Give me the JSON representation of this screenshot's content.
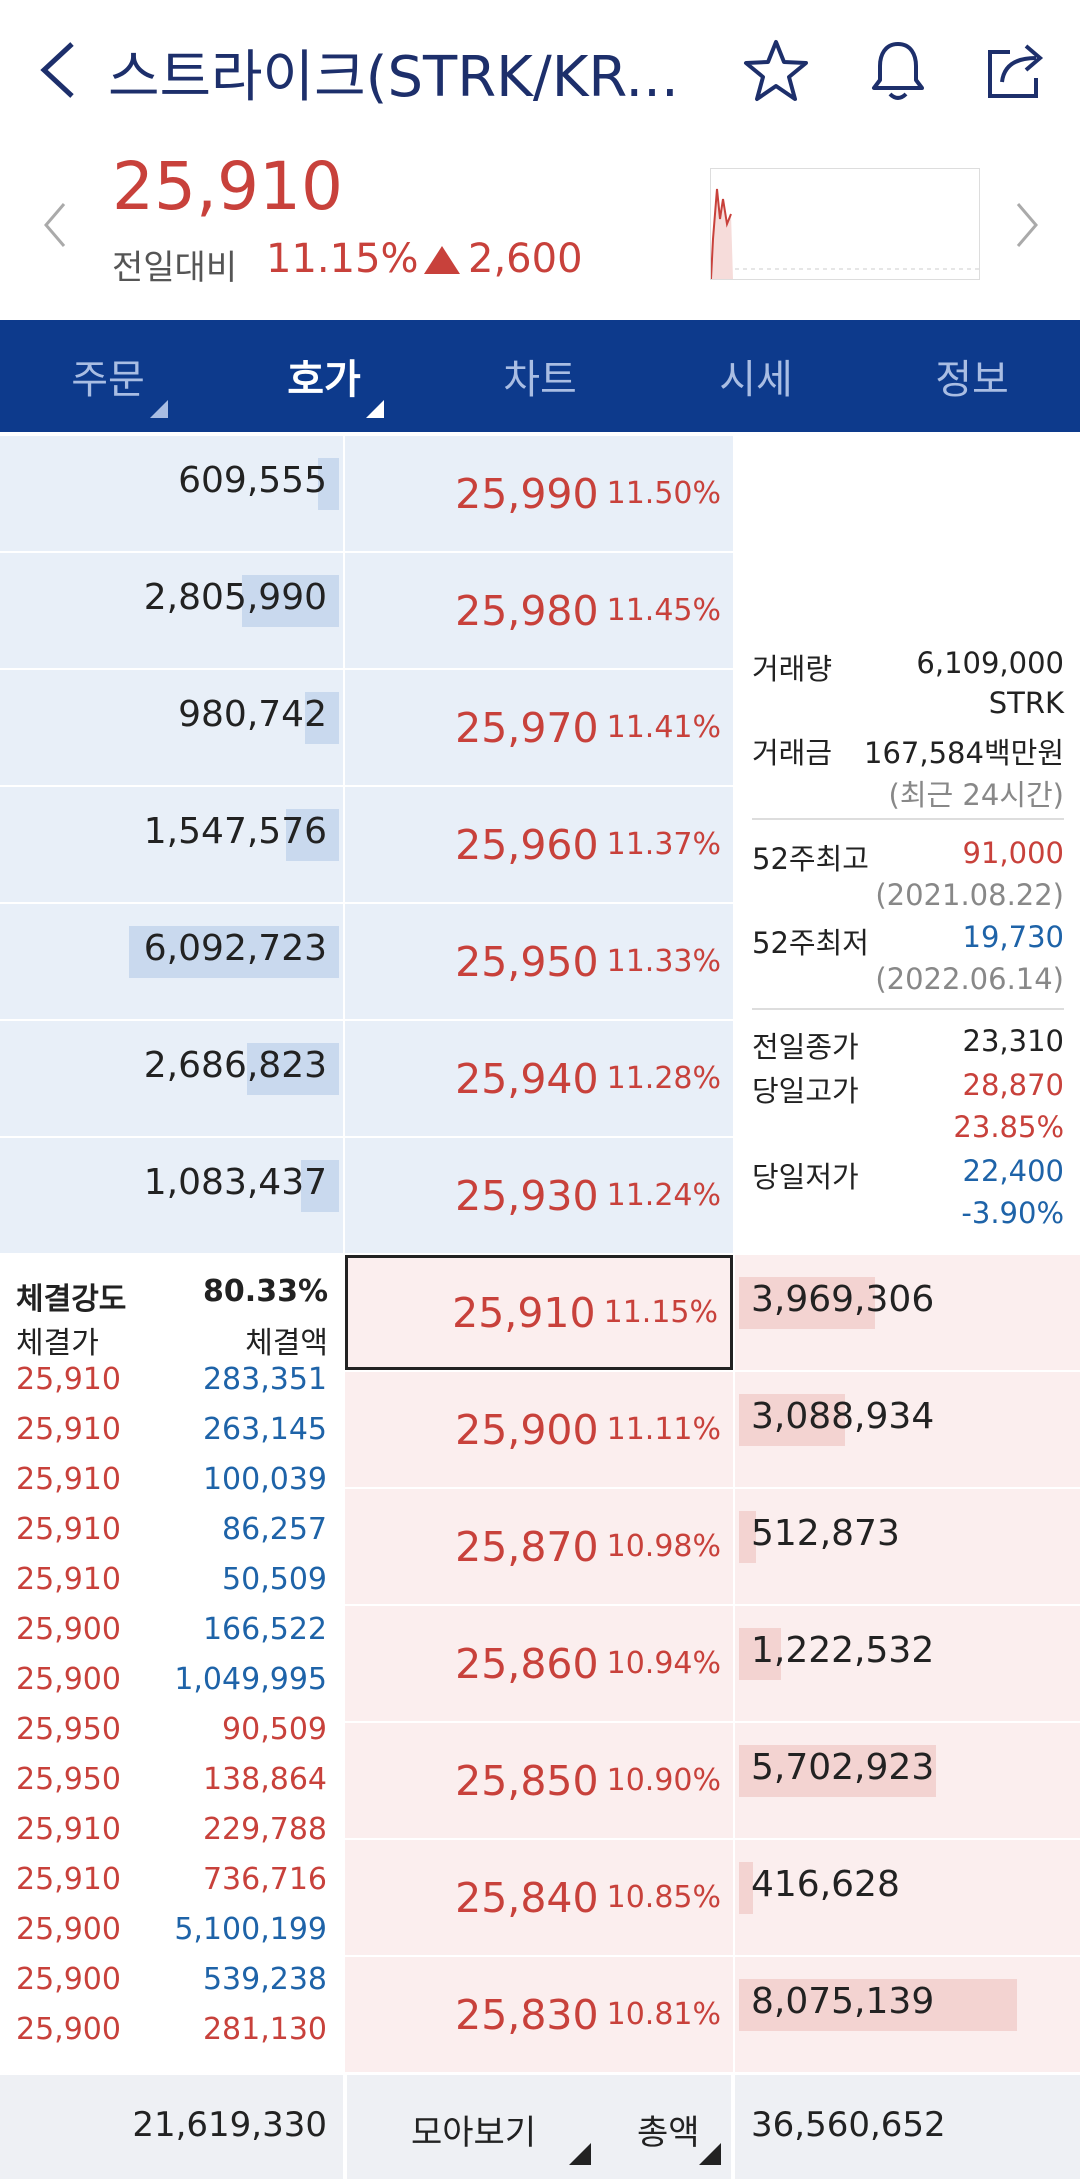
{
  "header": {
    "title": "스트라이크(STRK/KR...",
    "icons": [
      "back-icon",
      "star-icon",
      "bell-icon",
      "share-icon"
    ]
  },
  "price": {
    "current": "25,910",
    "change_label": "전일대비",
    "change_pct": "11.15%",
    "change_amount": "2,600"
  },
  "tabs": [
    {
      "label": "주문",
      "has_menu": true,
      "active": false
    },
    {
      "label": "호가",
      "has_menu": true,
      "active": true
    },
    {
      "label": "차트",
      "has_menu": false,
      "active": false
    },
    {
      "label": "시세",
      "has_menu": false,
      "active": false
    },
    {
      "label": "정보",
      "has_menu": false,
      "active": false
    }
  ],
  "asks": [
    {
      "volume": "609,555",
      "price": "25,990",
      "pct": "11.50%",
      "bar": 0.1
    },
    {
      "volume": "2,805,990",
      "price": "25,980",
      "pct": "11.45%",
      "bar": 0.46
    },
    {
      "volume": "980,742",
      "price": "25,970",
      "pct": "11.41%",
      "bar": 0.16
    },
    {
      "volume": "1,547,576",
      "price": "25,960",
      "pct": "11.37%",
      "bar": 0.25
    },
    {
      "volume": "6,092,723",
      "price": "25,950",
      "pct": "11.33%",
      "bar": 1.0
    },
    {
      "volume": "2,686,823",
      "price": "25,940",
      "pct": "11.28%",
      "bar": 0.44
    },
    {
      "volume": "1,083,437",
      "price": "25,930",
      "pct": "11.24%",
      "bar": 0.18
    }
  ],
  "bids": [
    {
      "price": "25,910",
      "pct": "11.15%",
      "volume": "3,969,306",
      "bar": 0.49,
      "current": true
    },
    {
      "price": "25,900",
      "pct": "11.11%",
      "volume": "3,088,934",
      "bar": 0.38
    },
    {
      "price": "25,870",
      "pct": "10.98%",
      "volume": "512,873",
      "bar": 0.06
    },
    {
      "price": "25,860",
      "pct": "10.94%",
      "volume": "1,222,532",
      "bar": 0.15
    },
    {
      "price": "25,850",
      "pct": "10.90%",
      "volume": "5,702,923",
      "bar": 0.71
    },
    {
      "price": "25,840",
      "pct": "10.85%",
      "volume": "416,628",
      "bar": 0.05
    },
    {
      "price": "25,830",
      "pct": "10.81%",
      "volume": "8,075,139",
      "bar": 1.0
    }
  ],
  "info": {
    "volume_label": "거래량",
    "volume_value": "6,109,000",
    "volume_unit": "STRK",
    "amount_label": "거래금",
    "amount_value": "167,584백만원",
    "amount_note": "(최근 24시간)",
    "high52_label": "52주최고",
    "high52_value": "91,000",
    "high52_date": "(2021.08.22)",
    "low52_label": "52주최저",
    "low52_value": "19,730",
    "low52_date": "(2022.06.14)",
    "prev_close_label": "전일종가",
    "prev_close_value": "23,310",
    "day_high_label": "당일고가",
    "day_high_value": "28,870",
    "day_high_pct": "23.85%",
    "day_low_label": "당일저가",
    "day_low_value": "22,400",
    "day_low_pct": "-3.90%"
  },
  "trades": {
    "strength_label": "체결강도",
    "strength_value": "80.33%",
    "price_header": "체결가",
    "amount_header": "체결액",
    "rows": [
      {
        "price": "25,910",
        "amount": "283,351",
        "color": "#1e63a8"
      },
      {
        "price": "25,910",
        "amount": "263,145",
        "color": "#1e63a8"
      },
      {
        "price": "25,910",
        "amount": "100,039",
        "color": "#1e63a8"
      },
      {
        "price": "25,910",
        "amount": "86,257",
        "color": "#1e63a8"
      },
      {
        "price": "25,910",
        "amount": "50,509",
        "color": "#1e63a8"
      },
      {
        "price": "25,900",
        "amount": "166,522",
        "color": "#1e63a8"
      },
      {
        "price": "25,900",
        "amount": "1,049,995",
        "color": "#1e63a8"
      },
      {
        "price": "25,950",
        "amount": "90,509",
        "color": "#c8413b"
      },
      {
        "price": "25,950",
        "amount": "138,864",
        "color": "#c8413b"
      },
      {
        "price": "25,910",
        "amount": "229,788",
        "color": "#c8413b"
      },
      {
        "price": "25,910",
        "amount": "736,716",
        "color": "#c8413b"
      },
      {
        "price": "25,900",
        "amount": "5,100,199",
        "color": "#1e63a8"
      },
      {
        "price": "25,900",
        "amount": "539,238",
        "color": "#1e63a8"
      },
      {
        "price": "25,900",
        "amount": "281,130",
        "color": "#c8413b"
      }
    ]
  },
  "footer": {
    "ask_total": "21,619,330",
    "view_label": "모아보기",
    "total_label": "총액",
    "bid_total": "36,560,652"
  },
  "colors": {
    "up": "#c8413b",
    "down": "#1e63a8",
    "nav": "#0d3a8c",
    "ask_bg": "#e8eff8",
    "ask_bar": "#c9d9ee",
    "bid_bg": "#fbeeee",
    "bid_bar": "#f3d3d1"
  }
}
